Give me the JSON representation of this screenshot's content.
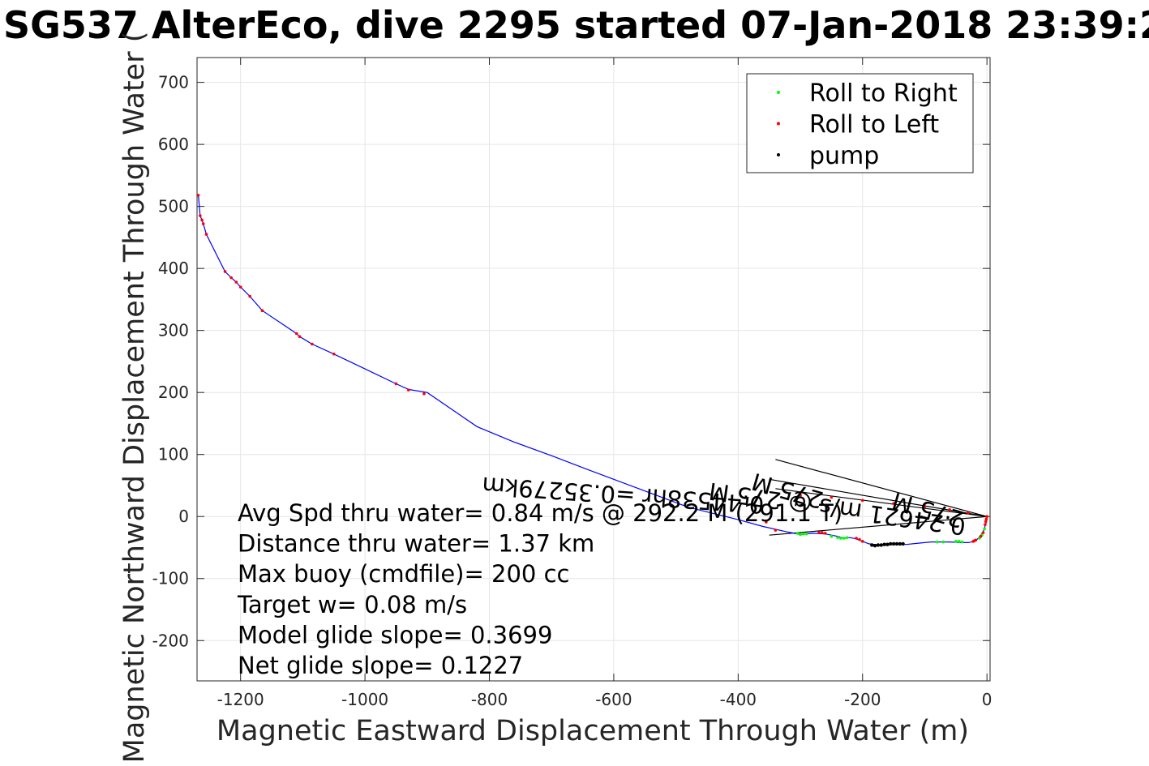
{
  "chart_data": {
    "type": "scatter",
    "title": "SG537 AlterEco, dive 2295 started 07-Jan-2018 23:39:2",
    "xlabel": "Magnetic Eastward Displacement Through Water (m)",
    "ylabel": "Magnetic Northward Displacement Through Water (",
    "xlim": [
      -1270,
      5
    ],
    "ylim": [
      -265,
      740
    ],
    "x_ticks": [
      -1200,
      -1000,
      -800,
      -600,
      -400,
      -200,
      0
    ],
    "y_ticks": [
      -200,
      -100,
      0,
      100,
      200,
      300,
      400,
      500,
      600,
      700
    ],
    "grid": true,
    "legend_position": "top-right",
    "legend": [
      {
        "label": "Roll to Right",
        "color": "#00ff00"
      },
      {
        "label": "Roll to Left",
        "color": "#ff0000"
      },
      {
        "label": "pump",
        "color": "#000000"
      }
    ],
    "track_color": "#0000ff",
    "track": {
      "x": [
        0,
        0,
        -2,
        -5,
        -10,
        -15,
        -20,
        -30,
        -40,
        -60,
        -90,
        -110,
        -130,
        -150,
        -170,
        -180,
        -190,
        -200,
        -210,
        -220,
        -230,
        -240,
        -260,
        -280,
        -300,
        -320,
        -360,
        -400,
        -440,
        -480,
        -520,
        -560,
        -600,
        -640,
        -700,
        -760,
        -820,
        -900,
        -930,
        -950,
        -1000,
        -1050,
        -1085,
        -1105,
        -1110,
        -1165,
        -1185,
        -1200,
        -1207,
        -1215,
        -1225,
        -1255,
        -1260,
        -1262,
        -1265,
        -1268
      ],
      "y": [
        0,
        -5,
        -12,
        -22,
        -30,
        -36,
        -40,
        -42,
        -42,
        -41,
        -41,
        -43,
        -45,
        -45,
        -46,
        -45,
        -44,
        -40,
        -36,
        -34,
        -35,
        -32,
        -28,
        -27,
        -29,
        -25,
        -16,
        -5,
        5,
        15,
        30,
        45,
        60,
        75,
        98,
        120,
        145,
        200,
        205,
        214,
        238,
        262,
        278,
        290,
        295,
        332,
        355,
        370,
        378,
        385,
        395,
        455,
        472,
        478,
        485,
        520
      ]
    },
    "roll_right_points": {
      "x": [
        -4,
        -8,
        -12,
        -40,
        -45,
        -50,
        -70,
        -80,
        -225,
        -230,
        -235,
        -240,
        -250,
        -290,
        -295,
        -300,
        -305
      ],
      "y": [
        -20,
        -30,
        -35,
        -41,
        -40,
        -40,
        -41,
        -41,
        -34,
        -35,
        -35,
        -34,
        -32,
        -28,
        -28,
        -29,
        -27
      ]
    },
    "roll_left_points": {
      "x": [
        0,
        -1,
        -2,
        -3,
        -6,
        -10,
        -18,
        -20,
        -22,
        -200,
        -205,
        -210,
        -260,
        -265,
        -270,
        -340,
        -355,
        -905,
        -930,
        -950,
        -1050,
        -1085,
        -1105,
        -1110,
        -1165,
        -1185,
        -1200,
        -1207,
        -1215,
        -1225,
        -1255,
        -1260,
        -1262,
        -1265,
        -1268,
        -30,
        -60,
        -100,
        -150,
        -200,
        -250,
        -300
      ],
      "y": [
        0,
        -4,
        -8,
        -13,
        -26,
        -32,
        -38,
        -39,
        -40,
        -40,
        -37,
        -35,
        -27,
        -26,
        -26,
        -22,
        -9,
        198,
        204,
        214,
        262,
        278,
        290,
        295,
        332,
        355,
        370,
        378,
        385,
        395,
        455,
        472,
        478,
        485,
        518,
        6,
        11,
        16,
        21,
        26,
        31,
        34
      ]
    },
    "pump_points": {
      "x": [
        -185,
        -180,
        -175,
        -170,
        -165,
        -160,
        -155,
        -150,
        -145,
        -140,
        -135
      ],
      "y": [
        -46,
        -47,
        -46,
        -46,
        -45,
        -45,
        -44,
        -44,
        -44,
        -44,
        -44
      ]
    },
    "heading_lines": [
      {
        "x": [
          0,
          -340
        ],
        "y": [
          0,
          92
        ],
        "color": "#000000"
      },
      {
        "x": [
          0,
          -350
        ],
        "y": [
          0,
          -30
        ],
        "color": "#000000"
      },
      {
        "x": [
          0,
          -350
        ],
        "y": [
          0,
          60
        ],
        "color": "#000000"
      },
      {
        "x": [
          0,
          -340
        ],
        "y": [
          0,
          45
        ],
        "color": "#000000"
      }
    ],
    "rotated_annotations": [
      "0.24621 m/s @ 275 M",
      "0.44538hr =0.35279km",
      "275 M"
    ],
    "annotations": [
      "Avg Spd thru water=  0.84 m/s @ 292.2   M (291.1 T)",
      "Distance thru water=  1.37 km",
      "Max buoy (cmdfile)= 200 cc",
      "Target w= 0.08 m/s",
      "Model glide slope= 0.3699",
      "Net glide slope= 0.1227"
    ]
  }
}
